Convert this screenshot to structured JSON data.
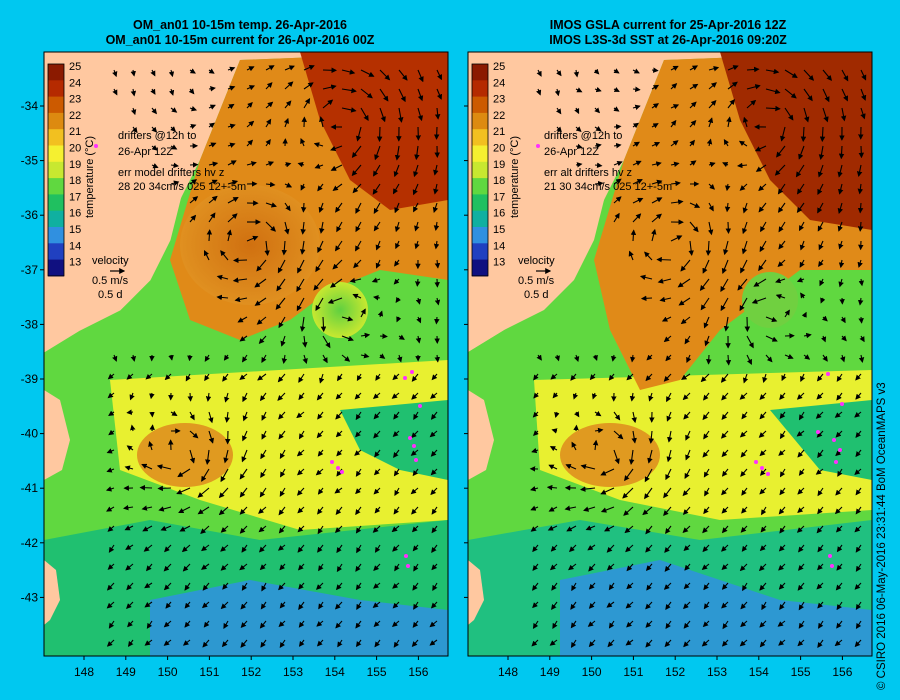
{
  "left": {
    "title_line1": "OM_an01 10-15m temp. 26-Apr-2016",
    "title_line2": "OM_an01 10-15m current for 26-Apr-2016 00Z",
    "drifters_line1": "drifters @12h to",
    "drifters_line2": "26-Apr 12Z",
    "err_line1": "err model drifters hv z",
    "err_line2": "28 20 34cm/s 025 12+-5m"
  },
  "right": {
    "title_line1": "IMOS GSLA current for 25-Apr-2016 12Z",
    "title_line2": "IMOS L3S-3d SST at 26-Apr-2016 09:20Z",
    "drifters_line1": "drifters @12h to",
    "drifters_line2": "26-Apr 12Z",
    "err_line1": "err alt drifters hv z",
    "err_line2": "21 30 34cm/s 025 12+-5m"
  },
  "colorbar": {
    "label": "temperature (°C)",
    "ticks": [
      "25",
      "24",
      "23",
      "22",
      "21",
      "20",
      "19",
      "18",
      "17",
      "16",
      "15",
      "14",
      "13"
    ],
    "colors": [
      "#8b1a00",
      "#b52a00",
      "#cc5a00",
      "#dd8a10",
      "#f2c020",
      "#f5f030",
      "#c8e830",
      "#60d840",
      "#20c060",
      "#10b0a0",
      "#3090e0",
      "#2040c0",
      "#101080"
    ]
  },
  "velocity_legend": {
    "title": "velocity",
    "speed": "0.5 m/s",
    "duration": "0.5 d"
  },
  "axes": {
    "lon_ticks": [
      "148",
      "149",
      "150",
      "151",
      "152",
      "153",
      "154",
      "155",
      "156"
    ],
    "lat_ticks": [
      "-34",
      "-35",
      "-36",
      "-37",
      "-38",
      "-39",
      "-40",
      "-41",
      "-42",
      "-43"
    ]
  },
  "credit": "© CSIRO 2016  06-May-2016 23:31:44 BoM OceanMAPS v3",
  "colors": {
    "background": "#00c8f0",
    "land": "#ffc8a0",
    "drifter": "#ff30ff"
  }
}
